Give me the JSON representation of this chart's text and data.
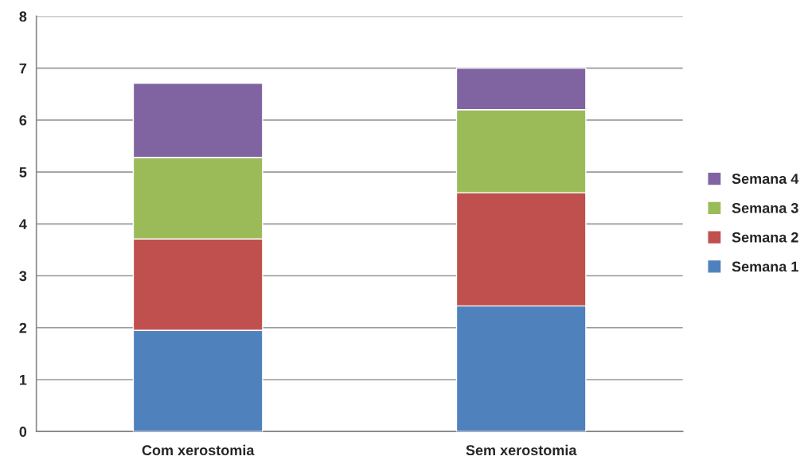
{
  "chart_data": {
    "type": "bar",
    "stacked": true,
    "categories": [
      "Com xerostomia",
      "Sem xerostomia"
    ],
    "series": [
      {
        "name": "Semana 1",
        "color": "#4f81bd",
        "values": [
          1.95,
          2.42
        ]
      },
      {
        "name": "Semana 2",
        "color": "#c0504d",
        "values": [
          1.76,
          2.18
        ]
      },
      {
        "name": "Semana 3",
        "color": "#9bbb59",
        "values": [
          1.57,
          1.6
        ]
      },
      {
        "name": "Semana 4",
        "color": "#8064a2",
        "values": [
          1.43,
          0.8
        ]
      }
    ],
    "ylim": [
      0,
      8
    ],
    "yticks": [
      0,
      1,
      2,
      3,
      4,
      5,
      6,
      7,
      8
    ],
    "grid": "y",
    "legend": "right"
  }
}
